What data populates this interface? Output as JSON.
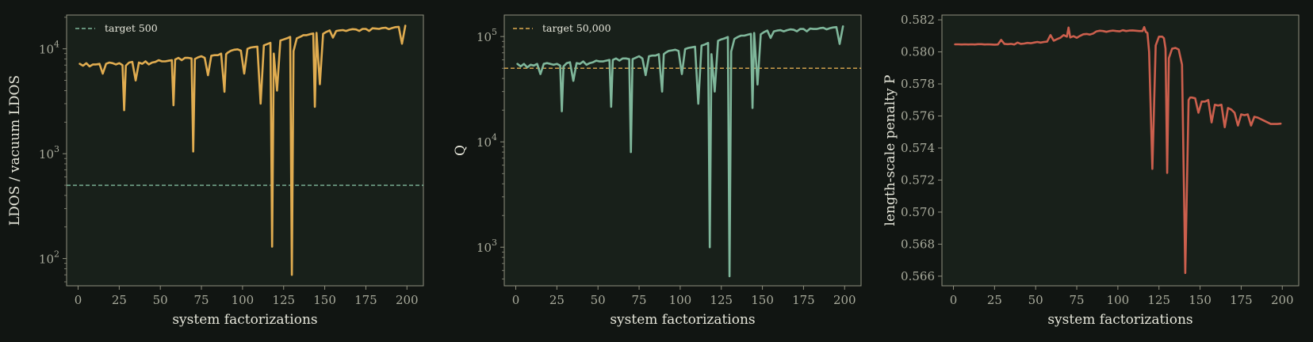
{
  "chart_data": [
    {
      "type": "line",
      "yscale": "log",
      "xlim": [
        -7,
        210
      ],
      "ylim": [
        55,
        21000
      ],
      "xticks": [
        0,
        25,
        50,
        75,
        100,
        125,
        150,
        175,
        200
      ],
      "yticks": [
        {
          "value": 100,
          "base": "10",
          "exp": "2"
        },
        {
          "value": 1000,
          "base": "10",
          "exp": "3"
        },
        {
          "value": 10000,
          "base": "10",
          "exp": "4"
        }
      ],
      "xlabel": "system factorizations",
      "ylabel": "LDOS / vacuum LDOS",
      "grid": false,
      "legend": {
        "placement": "top-left",
        "entries": [
          {
            "label": "target 500",
            "color": "#7fb79b",
            "style": "dashed"
          }
        ]
      },
      "reference_line": {
        "y": 500,
        "color": "#7fb79b",
        "style": "dashed"
      },
      "series": [
        {
          "color": "#e0ac50",
          "x": [
            1,
            3,
            5,
            7,
            9,
            11,
            13,
            15,
            17,
            19,
            21,
            23,
            25,
            27,
            28,
            29,
            31,
            33,
            35,
            37,
            39,
            41,
            43,
            45,
            47,
            49,
            51,
            53,
            55,
            57,
            58,
            59,
            61,
            63,
            65,
            67,
            69,
            70,
            71,
            73,
            75,
            77,
            79,
            81,
            83,
            85,
            87,
            89,
            90,
            91,
            93,
            95,
            97,
            99,
            101,
            103,
            105,
            107,
            109,
            111,
            113,
            115,
            117,
            118,
            119,
            121,
            123,
            125,
            127,
            129,
            130,
            131,
            133,
            135,
            137,
            139,
            141,
            143,
            144,
            145,
            147,
            149,
            151,
            153,
            155,
            157,
            159,
            161,
            163,
            165,
            167,
            169,
            171,
            173,
            175,
            177,
            179,
            181,
            183,
            185,
            187,
            189,
            191,
            193,
            195,
            197,
            199
          ],
          "y": [
            7200,
            6900,
            7300,
            6800,
            7100,
            7100,
            7200,
            5800,
            7200,
            7400,
            7300,
            7100,
            7300,
            7000,
            2600,
            6900,
            7400,
            7500,
            5000,
            7400,
            7200,
            7600,
            7100,
            7400,
            7500,
            7800,
            7600,
            7600,
            7700,
            7800,
            2900,
            7900,
            8200,
            7800,
            8200,
            8200,
            8100,
            1050,
            8000,
            8300,
            8500,
            8200,
            5600,
            8600,
            8700,
            8700,
            9000,
            3900,
            8900,
            9200,
            9600,
            9800,
            9900,
            9600,
            5800,
            10000,
            10300,
            10400,
            10500,
            3000,
            10800,
            11100,
            11400,
            130,
            9000,
            4000,
            12000,
            12300,
            12600,
            13000,
            70,
            9500,
            12600,
            13000,
            13500,
            13500,
            13800,
            14000,
            2800,
            14200,
            4600,
            13900,
            14500,
            15000,
            12800,
            14800,
            15000,
            15100,
            14800,
            15200,
            15400,
            15300,
            14800,
            15500,
            15500,
            14800,
            15700,
            15600,
            15500,
            15800,
            15900,
            15400,
            15800,
            16100,
            16200,
            11200,
            16600
          ]
        }
      ]
    },
    {
      "type": "line",
      "yscale": "log",
      "xlim": [
        -7,
        210
      ],
      "ylim": [
        430,
        160000
      ],
      "xticks": [
        0,
        25,
        50,
        75,
        100,
        125,
        150,
        175,
        200
      ],
      "yticks": [
        {
          "value": 1000,
          "base": "10",
          "exp": "3"
        },
        {
          "value": 10000,
          "base": "10",
          "exp": "4"
        },
        {
          "value": 100000,
          "base": "10",
          "exp": "5"
        }
      ],
      "xlabel": "system factorizations",
      "ylabel": "Q",
      "grid": false,
      "legend": {
        "placement": "top-left",
        "entries": [
          {
            "label": "target 50,000",
            "color": "#e0ac50",
            "style": "dashed"
          }
        ]
      },
      "reference_line": {
        "y": 50000,
        "color": "#e0ac50",
        "style": "dashed"
      },
      "series": [
        {
          "color": "#7fb79b",
          "x": [
            1,
            3,
            5,
            7,
            9,
            11,
            13,
            15,
            17,
            19,
            21,
            23,
            25,
            27,
            28,
            29,
            31,
            33,
            35,
            37,
            39,
            41,
            43,
            45,
            47,
            49,
            51,
            53,
            55,
            57,
            58,
            59,
            61,
            63,
            65,
            67,
            69,
            70,
            71,
            73,
            75,
            77,
            79,
            81,
            83,
            85,
            87,
            89,
            90,
            91,
            93,
            95,
            97,
            99,
            101,
            103,
            105,
            107,
            109,
            111,
            113,
            115,
            117,
            118,
            119,
            121,
            123,
            125,
            127,
            129,
            130,
            131,
            133,
            135,
            137,
            139,
            141,
            143,
            144,
            145,
            147,
            149,
            151,
            153,
            155,
            157,
            159,
            161,
            163,
            165,
            167,
            169,
            171,
            173,
            175,
            177,
            179,
            181,
            183,
            185,
            187,
            189,
            191,
            193,
            195,
            197,
            199
          ],
          "y": [
            55000,
            52000,
            55000,
            51000,
            54000,
            53000,
            55000,
            44000,
            55000,
            56000,
            55000,
            54000,
            55000,
            53000,
            19500,
            52000,
            56000,
            57000,
            38000,
            56000,
            55000,
            58000,
            54000,
            56000,
            57000,
            59000,
            58000,
            58000,
            59000,
            60000,
            21500,
            60000,
            62000,
            59000,
            62000,
            62000,
            61000,
            8000,
            61000,
            63000,
            65000,
            62000,
            43000,
            65000,
            66000,
            66000,
            68000,
            30000,
            68000,
            70000,
            73000,
            74000,
            75000,
            73000,
            44000,
            76000,
            78000,
            79000,
            80000,
            23000,
            82000,
            84000,
            87000,
            1000,
            68000,
            30000,
            91000,
            94000,
            96000,
            99000,
            530,
            72000,
            95000,
            99000,
            102000,
            102000,
            104000,
            106000,
            21000,
            108000,
            35000,
            105000,
            110000,
            114000,
            97000,
            112000,
            114000,
            115000,
            112000,
            115000,
            117000,
            116000,
            112000,
            118000,
            118000,
            112000,
            119000,
            118000,
            118000,
            120000,
            121000,
            117000,
            120000,
            122000,
            123000,
            85000,
            125000
          ]
        }
      ]
    },
    {
      "type": "line",
      "yscale": "linear",
      "xlim": [
        -7,
        210
      ],
      "ylim": [
        0.5654,
        0.5823
      ],
      "xticks": [
        0,
        25,
        50,
        75,
        100,
        125,
        150,
        175,
        200
      ],
      "yticks": [
        0.566,
        0.568,
        0.57,
        0.572,
        0.574,
        0.576,
        0.578,
        0.58,
        0.582
      ],
      "ytick_labels": [
        "0.566",
        "0.568",
        "0.570",
        "0.572",
        "0.574",
        "0.576",
        "0.578",
        "0.580",
        "0.582"
      ],
      "xlabel": "system factorizations",
      "ylabel": "length-scale penalty P",
      "grid": false,
      "series": [
        {
          "color": "#cc5f4d",
          "x": [
            1,
            3,
            5,
            7,
            9,
            11,
            13,
            15,
            17,
            19,
            21,
            23,
            25,
            27,
            29,
            31,
            33,
            35,
            37,
            39,
            41,
            43,
            45,
            47,
            49,
            51,
            53,
            55,
            57,
            59,
            61,
            63,
            65,
            67,
            69,
            70,
            71,
            73,
            75,
            77,
            79,
            81,
            83,
            85,
            87,
            89,
            91,
            93,
            95,
            97,
            99,
            101,
            103,
            105,
            107,
            109,
            111,
            113,
            115,
            116,
            117,
            118,
            119,
            121,
            123,
            125,
            127,
            128,
            129,
            130,
            131,
            133,
            135,
            137,
            139,
            141,
            143,
            144,
            145,
            147,
            149,
            151,
            153,
            155,
            157,
            159,
            161,
            163,
            165,
            167,
            169,
            171,
            173,
            175,
            177,
            179,
            181,
            183,
            185,
            187,
            189,
            191,
            193,
            195,
            197,
            199
          ],
          "y": [
            0.58047,
            0.58047,
            0.58046,
            0.58047,
            0.58046,
            0.58047,
            0.58046,
            0.58048,
            0.58048,
            0.58046,
            0.58047,
            0.58046,
            0.58045,
            0.58046,
            0.58075,
            0.5805,
            0.58048,
            0.5805,
            0.58046,
            0.58058,
            0.5805,
            0.58052,
            0.58056,
            0.58054,
            0.58058,
            0.58062,
            0.58058,
            0.58062,
            0.58064,
            0.58105,
            0.5807,
            0.5808,
            0.58088,
            0.58105,
            0.58095,
            0.58152,
            0.5809,
            0.58098,
            0.58088,
            0.581,
            0.5811,
            0.58112,
            0.58108,
            0.58115,
            0.58128,
            0.58132,
            0.5813,
            0.58125,
            0.5813,
            0.58133,
            0.5813,
            0.58128,
            0.58135,
            0.5813,
            0.58133,
            0.58134,
            0.58132,
            0.5813,
            0.5813,
            0.58155,
            0.58125,
            0.58118,
            0.58,
            0.5727,
            0.5804,
            0.58095,
            0.58095,
            0.58085,
            0.5802,
            0.57245,
            0.5796,
            0.5802,
            0.58025,
            0.58015,
            0.5792,
            0.5662,
            0.577,
            0.57715,
            0.57715,
            0.5771,
            0.5762,
            0.5769,
            0.5769,
            0.577,
            0.5756,
            0.5767,
            0.57665,
            0.5767,
            0.5753,
            0.5765,
            0.5764,
            0.5762,
            0.5754,
            0.5761,
            0.57605,
            0.5761,
            0.5754,
            0.57595,
            0.5759,
            0.5758,
            0.5757,
            0.5756,
            0.5755,
            0.5755,
            0.5755,
            0.57552
          ]
        }
      ]
    }
  ]
}
